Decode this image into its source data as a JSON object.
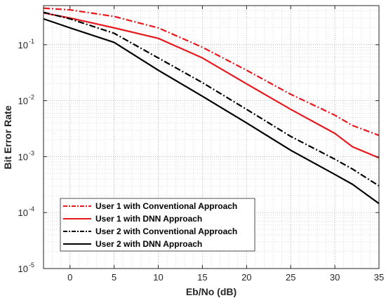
{
  "chart_data": {
    "type": "line",
    "title": "",
    "xlabel": "Eb/No (dB)",
    "ylabel": "Bit Error Rate",
    "x_scale": "linear",
    "y_scale": "log",
    "xlim": [
      -3,
      35
    ],
    "ylim": [
      1e-05,
      0.5
    ],
    "x_ticks": [
      0,
      5,
      10,
      15,
      20,
      25,
      30,
      35
    ],
    "x_tick_labels": [
      "0",
      "5",
      "10",
      "15",
      "20",
      "25",
      "30",
      "35"
    ],
    "y_ticks": [
      1e-05,
      0.0001,
      0.001,
      0.01,
      0.1
    ],
    "y_tick_labels": [
      {
        "base": "10",
        "exp": "-5"
      },
      {
        "base": "10",
        "exp": "-4"
      },
      {
        "base": "10",
        "exp": "-3"
      },
      {
        "base": "10",
        "exp": "-2"
      },
      {
        "base": "10",
        "exp": "-1"
      }
    ],
    "grid": true,
    "minor_grid": true,
    "legend_position": "bottom-left",
    "x": [
      -3,
      0,
      5,
      10,
      15,
      20,
      25,
      30,
      32,
      35
    ],
    "series": [
      {
        "name": "User 1 with Conventional Approach",
        "color": "#e8191e",
        "dash": "dashdot",
        "values": [
          0.45,
          0.42,
          0.32,
          0.2,
          0.09,
          0.035,
          0.013,
          0.0055,
          0.0036,
          0.0024
        ]
      },
      {
        "name": "User 1 with DNN Approach",
        "color": "#e8191e",
        "dash": "solid",
        "values": [
          0.37,
          0.3,
          0.2,
          0.13,
          0.058,
          0.02,
          0.007,
          0.0026,
          0.0015,
          0.00095
        ]
      },
      {
        "name": "User 2 with Conventional Approach",
        "color": "#000000",
        "dash": "dashdot",
        "values": [
          0.38,
          0.29,
          0.16,
          0.058,
          0.021,
          0.007,
          0.0023,
          0.0009,
          0.0006,
          0.0003
        ]
      },
      {
        "name": "User 2 with DNN Approach",
        "color": "#000000",
        "dash": "solid",
        "values": [
          0.29,
          0.2,
          0.11,
          0.035,
          0.012,
          0.004,
          0.0013,
          0.00048,
          0.00032,
          0.000145
        ]
      }
    ]
  }
}
